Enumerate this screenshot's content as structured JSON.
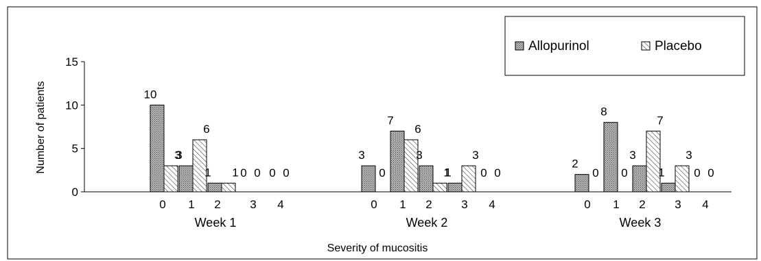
{
  "chart_data": {
    "type": "bar",
    "xlabel": "Severity of mucositis",
    "ylabel": "Number of patients",
    "ylim": [
      0,
      15
    ],
    "yticks": [
      0,
      5,
      10,
      15
    ],
    "grid": false,
    "legend_position": "top-right",
    "categories": [
      "0",
      "1",
      "2",
      "3",
      "4"
    ],
    "groups": [
      {
        "name": "Week 1",
        "series": [
          {
            "name": "Allopurinol",
            "values": [
              10,
              3,
              1,
              0,
              0
            ]
          },
          {
            "name": "Placebo",
            "values": [
              3,
              6,
              1,
              0,
              0
            ]
          }
        ]
      },
      {
        "name": "Week 2",
        "series": [
          {
            "name": "Allopurinol",
            "values": [
              3,
              7,
              3,
              1,
              0
            ]
          },
          {
            "name": "Placebo",
            "values": [
              0,
              6,
              1,
              3,
              0
            ]
          }
        ]
      },
      {
        "name": "Week 3",
        "series": [
          {
            "name": "Allopurinol",
            "values": [
              2,
              8,
              3,
              1,
              0
            ]
          },
          {
            "name": "Placebo",
            "values": [
              0,
              0,
              7,
              3,
              0
            ]
          }
        ]
      }
    ],
    "legend": [
      "Allopurinol",
      "Placebo"
    ],
    "colors": {
      "allopurinol": "#8c8c8c",
      "placebo": "#ffffff",
      "outline": "#000000"
    }
  }
}
